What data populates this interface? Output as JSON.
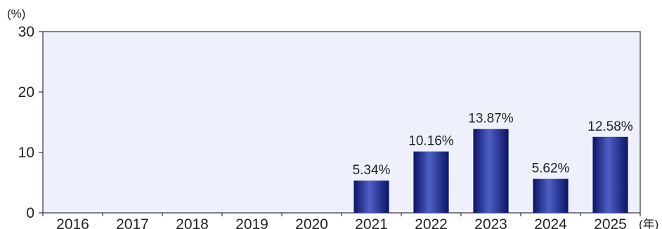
{
  "chart_data": {
    "type": "bar",
    "categories": [
      "2016",
      "2017",
      "2018",
      "2019",
      "2020",
      "2021",
      "2022",
      "2023",
      "2024",
      "2025"
    ],
    "values": [
      null,
      null,
      null,
      null,
      null,
      5.34,
      10.16,
      13.87,
      5.62,
      12.58
    ],
    "data_labels": [
      "",
      "",
      "",
      "",
      "",
      "5.34%",
      "10.16%",
      "13.87%",
      "5.62%",
      "12.58%"
    ],
    "title": "",
    "xlabel": "(年)",
    "ylabel": "(%)",
    "ylim": [
      0,
      30
    ],
    "yticks": [
      0,
      10,
      20,
      30
    ],
    "ytick_labels": [
      "0",
      "10",
      "20",
      "30"
    ],
    "grid": false,
    "legend": "none",
    "colors": {
      "plot_background": "#eef1fb",
      "bar_dark": "#0b1466",
      "bar_light": "#4e60c4",
      "axis": "#333333"
    }
  }
}
